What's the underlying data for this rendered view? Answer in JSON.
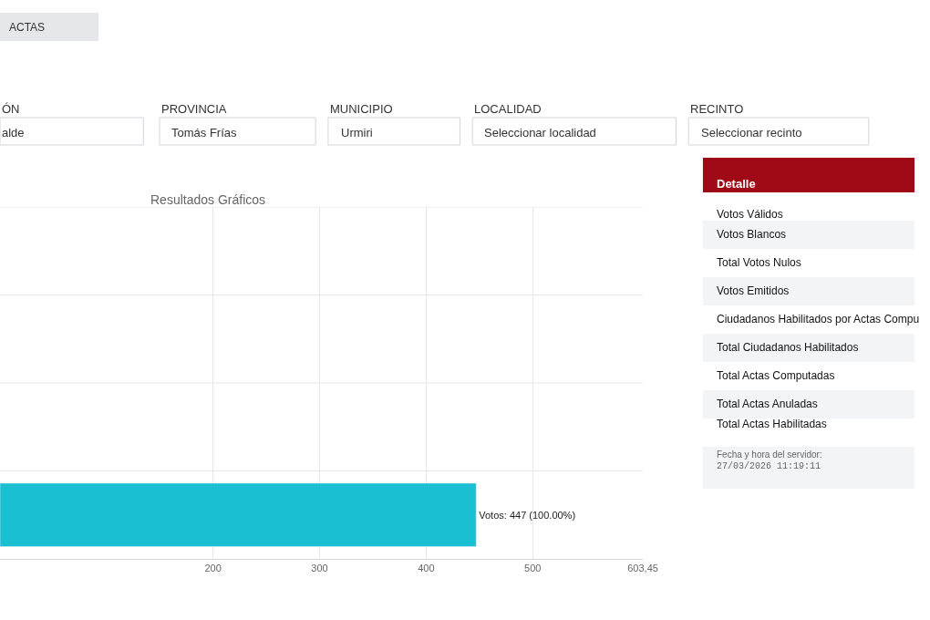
{
  "chart_data": [
    {
      "type": "other",
      "annotations": [
        "ACTAS",
        "ÓN",
        "alde",
        "PROVINCIA",
        "Tomás Frías",
        "MUNICIPIO",
        "Urmiri",
        "LOCALIDAD",
        "Seleccionar localidad",
        "RECINTO",
        "Seleccionar recinto"
      ]
    },
    {
      "type": "bar",
      "orientation": "horizontal",
      "title": "Resultados Gráficos",
      "categories": [
        null,
        null,
        null,
        null
      ],
      "values": [
        null,
        null,
        null,
        447
      ],
      "value_labels": [
        null,
        null,
        null,
        "Votos: 447 (100.00%)"
      ],
      "color": "#1abfd2",
      "xlim": [
        0,
        603.45
      ],
      "xticks": [
        200,
        300,
        400,
        500,
        {
          "value": 603.45,
          "label": "603,45"
        }
      ],
      "grid": true,
      "tick_labels": "x"
    },
    {
      "type": "other",
      "title": "Detalle",
      "annotations": [
        "Votos Válidos",
        "Votos Blancos",
        "Total Votos Nulos",
        "Votos Emitidos",
        "Ciudadanos Habilitados por Actas Compu",
        "Total Ciudadanos Habilitados",
        "Total Actas Computadas",
        "Total Actas Anuladas",
        "Total Actas Habilitadas",
        "Fecha y hora del servidor:",
        "27/03/2026 11:19:11"
      ]
    }
  ]
}
